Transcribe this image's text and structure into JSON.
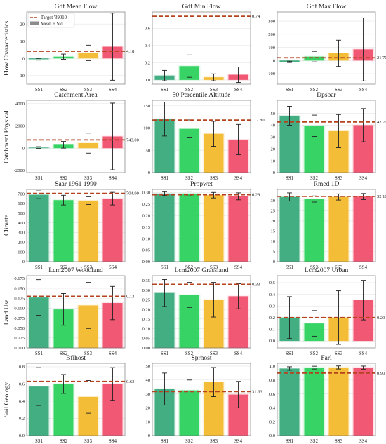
{
  "figure": {
    "row_labels": [
      "Flow Characteristics",
      "Catchment Physical",
      "Climate",
      "Land Use",
      "Soil Geology"
    ],
    "legend": {
      "target_label": "Target '39010'",
      "mean_label": "Mean ± Std",
      "placement": "upper-left of first panel"
    },
    "colors": {
      "SS1": "#3aaa7c",
      "SS2": "#2ed15e",
      "SS3": "#f3b92e",
      "SS4": "#f0506e",
      "target_line": "#b5431f",
      "error_bar": "#222222"
    }
  },
  "chart_data": [
    {
      "type": "bar",
      "row": 0,
      "col": 0,
      "title": "Gdf Mean Flow",
      "categories": [
        "SS1",
        "SS2",
        "SS3",
        "SS4"
      ],
      "values": [
        -0.5,
        1.0,
        3.2,
        6.8
      ],
      "errors": [
        0.5,
        1.5,
        4.5,
        19.5
      ],
      "target": 4.18,
      "target_label": "4.18",
      "ylim": [
        -15,
        27
      ],
      "yticks": [
        -10,
        0,
        10,
        20
      ],
      "ytick_labels": [
        "-10",
        "0",
        "10",
        "20"
      ],
      "grid": true
    },
    {
      "type": "bar",
      "row": 0,
      "col": 1,
      "title": "Gdf Min Flow",
      "categories": [
        "SS1",
        "SS2",
        "SS3",
        "SS4"
      ],
      "values": [
        0.05,
        0.16,
        0.03,
        0.06
      ],
      "errors": [
        0.06,
        0.13,
        0.04,
        0.09
      ],
      "target": 0.74,
      "target_label": "0.74",
      "ylim": [
        -0.05,
        0.79
      ],
      "yticks": [
        0.0,
        0.2,
        0.4,
        0.6
      ],
      "ytick_labels": [
        "0.0",
        "0.2",
        "0.4",
        "0.6"
      ],
      "grid": true
    },
    {
      "type": "bar",
      "row": 0,
      "col": 2,
      "title": "Gdf Max Flow",
      "categories": [
        "SS1",
        "SS2",
        "SS3",
        "SS4"
      ],
      "values": [
        -10,
        30,
        55,
        85
      ],
      "errors": [
        5,
        40,
        100,
        240
      ],
      "target": 21.7,
      "target_label": "21.70",
      "ylim": [
        -180,
        370
      ],
      "yticks": [
        -100,
        0,
        100,
        200,
        300
      ],
      "ytick_labels": [
        "-100",
        "0",
        "100",
        "200",
        "300"
      ],
      "grid": true
    },
    {
      "type": "bar",
      "row": 1,
      "col": 0,
      "title": "Catchment Area",
      "categories": [
        "SS1",
        "SS2",
        "SS3",
        "SS4"
      ],
      "values": [
        50,
        300,
        450,
        1050
      ],
      "errors": [
        80,
        300,
        900,
        3000
      ],
      "target": 743.0,
      "target_label": "743.00",
      "ylim": [
        -2200,
        4300
      ],
      "yticks": [
        -2000,
        0,
        2000,
        4000
      ],
      "ytick_labels": [
        "-2000",
        "0",
        "2000",
        "4000"
      ],
      "grid": true
    },
    {
      "type": "bar",
      "row": 1,
      "col": 1,
      "title": "50 Percentile Altitude",
      "categories": [
        "SS1",
        "SS2",
        "SS3",
        "SS4"
      ],
      "values": [
        120,
        98,
        87,
        74
      ],
      "errors": [
        38,
        20,
        28,
        34
      ],
      "target": 117.8,
      "target_label": "117.80",
      "ylim": [
        0,
        162
      ],
      "yticks": [
        0,
        50,
        100,
        150
      ],
      "ytick_labels": [
        "0",
        "50",
        "100",
        "150"
      ],
      "grid": true
    },
    {
      "type": "bar",
      "row": 1,
      "col": 2,
      "title": "Dpsbar",
      "categories": [
        "SS1",
        "SS2",
        "SS3",
        "SS4"
      ],
      "values": [
        48,
        39.5,
        35,
        40
      ],
      "errors": [
        8,
        9,
        14,
        14
      ],
      "target": 42.7,
      "target_label": "42.70",
      "ylim": [
        0,
        61
      ],
      "yticks": [
        0,
        10,
        20,
        30,
        40,
        50
      ],
      "ytick_labels": [
        "0",
        "10",
        "20",
        "30",
        "40",
        "50"
      ],
      "grid": true
    },
    {
      "type": "bar",
      "row": 2,
      "col": 0,
      "title": "Saar 1961 1990",
      "categories": [
        "SS1",
        "SS2",
        "SS3",
        "SS4"
      ],
      "values": [
        690,
        635,
        630,
        650
      ],
      "errors": [
        40,
        50,
        40,
        65
      ],
      "target": 704.0,
      "target_label": "704.00",
      "ylim": [
        0,
        745
      ],
      "yticks": [
        0,
        100,
        200,
        300,
        400,
        500,
        600,
        700
      ],
      "ytick_labels": [
        "0",
        "100",
        "200",
        "300",
        "400",
        "500",
        "600",
        "700"
      ],
      "grid": true
    },
    {
      "type": "bar",
      "row": 2,
      "col": 1,
      "title": "Propwet",
      "categories": [
        "SS1",
        "SS2",
        "SS3",
        "SS4"
      ],
      "values": [
        0.295,
        0.295,
        0.288,
        0.283
      ],
      "errors": [
        0.008,
        0.01,
        0.012,
        0.015
      ],
      "target": 0.29,
      "target_label": "0.29",
      "ylim": [
        0,
        0.313
      ],
      "yticks": [
        0.0,
        0.05,
        0.1,
        0.15,
        0.2,
        0.25,
        0.3
      ],
      "ytick_labels": [
        "0.00",
        "0.05",
        "0.10",
        "0.15",
        "0.20",
        "0.25",
        "0.30"
      ],
      "grid": true
    },
    {
      "type": "bar",
      "row": 2,
      "col": 2,
      "title": "Rmed 1D",
      "categories": [
        "SS1",
        "SS2",
        "SS3",
        "SS4"
      ],
      "values": [
        31.8,
        30.8,
        31.8,
        32.0
      ],
      "errors": [
        2,
        1.5,
        1.5,
        1.5
      ],
      "target": 32.1,
      "target_label": "32.10",
      "ylim": [
        0,
        35.5
      ],
      "yticks": [
        0,
        5,
        10,
        15,
        20,
        25,
        30
      ],
      "ytick_labels": [
        "0",
        "5",
        "10",
        "15",
        "20",
        "25",
        "30"
      ],
      "grid": true
    },
    {
      "type": "bar",
      "row": 3,
      "col": 0,
      "title": "Lcm2007 Woodland",
      "categories": [
        "SS1",
        "SS2",
        "SS3",
        "SS4"
      ],
      "values": [
        0.127,
        0.097,
        0.107,
        0.113
      ],
      "errors": [
        0.045,
        0.04,
        0.058,
        0.042
      ],
      "target": 0.13,
      "target_label": "0.13",
      "ylim": [
        0,
        0.182
      ],
      "yticks": [
        0.0,
        0.025,
        0.05,
        0.075,
        0.1,
        0.125,
        0.15,
        0.175
      ],
      "ytick_labels": [
        "0.000",
        "0.025",
        "0.050",
        "0.075",
        "0.100",
        "0.125",
        "0.150",
        "0.175"
      ],
      "grid": true
    },
    {
      "type": "bar",
      "row": 3,
      "col": 1,
      "title": "Lcm2007 Grassland",
      "categories": [
        "SS1",
        "SS2",
        "SS3",
        "SS4"
      ],
      "values": [
        0.285,
        0.275,
        0.25,
        0.268
      ],
      "errors": [
        0.07,
        0.065,
        0.09,
        0.065
      ],
      "target": 0.33,
      "target_label": "0.33",
      "ylim": [
        0,
        0.375
      ],
      "yticks": [
        0.0,
        0.05,
        0.1,
        0.15,
        0.2,
        0.25,
        0.3,
        0.35
      ],
      "ytick_labels": [
        "0.00",
        "0.05",
        "0.10",
        "0.15",
        "0.20",
        "0.25",
        "0.30",
        "0.35"
      ],
      "grid": true
    },
    {
      "type": "bar",
      "row": 3,
      "col": 2,
      "title": "Lcm2007 Urban",
      "categories": [
        "SS1",
        "SS2",
        "SS3",
        "SS4"
      ],
      "values": [
        0.2,
        0.15,
        0.2,
        0.35
      ],
      "errors": [
        0.18,
        0.11,
        0.23,
        0.17
      ],
      "target": 0.2,
      "target_label": "0.20",
      "ylim": [
        -0.06,
        0.56
      ],
      "yticks": [
        0.0,
        0.1,
        0.2,
        0.3,
        0.4,
        0.5
      ],
      "ytick_labels": [
        "0.0",
        "0.1",
        "0.2",
        "0.3",
        "0.4",
        "0.5"
      ],
      "grid": true
    },
    {
      "type": "bar",
      "row": 4,
      "col": 0,
      "title": "Bfihost",
      "categories": [
        "SS1",
        "SS2",
        "SS3",
        "SS4"
      ],
      "values": [
        0.57,
        0.6,
        0.45,
        0.6
      ],
      "errors": [
        0.22,
        0.11,
        0.19,
        0.19
      ],
      "target": 0.63,
      "target_label": "0.63",
      "ylim": [
        0,
        0.84
      ],
      "yticks": [
        0.0,
        0.2,
        0.4,
        0.6,
        0.8
      ],
      "ytick_labels": [
        "0.0",
        "0.2",
        "0.4",
        "0.6",
        "0.8"
      ],
      "grid": true
    },
    {
      "type": "bar",
      "row": 4,
      "col": 1,
      "title": "Sprhost",
      "categories": [
        "SS1",
        "SS2",
        "SS3",
        "SS4"
      ],
      "values": [
        33.5,
        32.5,
        38.5,
        29.5
      ],
      "errors": [
        11.5,
        7.5,
        10.5,
        9.5
      ],
      "target": 31.63,
      "target_label": "31.63",
      "ylim": [
        0,
        52
      ],
      "yticks": [
        0,
        10,
        20,
        30,
        40,
        50
      ],
      "ytick_labels": [
        "0",
        "10",
        "20",
        "30",
        "40",
        "50"
      ],
      "grid": true
    },
    {
      "type": "bar",
      "row": 4,
      "col": 2,
      "title": "Farl",
      "categories": [
        "SS1",
        "SS2",
        "SS3",
        "SS4"
      ],
      "values": [
        0.965,
        0.978,
        0.98,
        0.978
      ],
      "errors": [
        0.025,
        0.02,
        0.022,
        0.022
      ],
      "target": 0.9,
      "target_label": "0.90",
      "ylim": [
        0,
        1.04
      ],
      "yticks": [
        0.0,
        0.2,
        0.4,
        0.6,
        0.8,
        1.0
      ],
      "ytick_labels": [
        "0.0",
        "0.2",
        "0.4",
        "0.6",
        "0.8",
        "1.0"
      ],
      "grid": true
    }
  ]
}
